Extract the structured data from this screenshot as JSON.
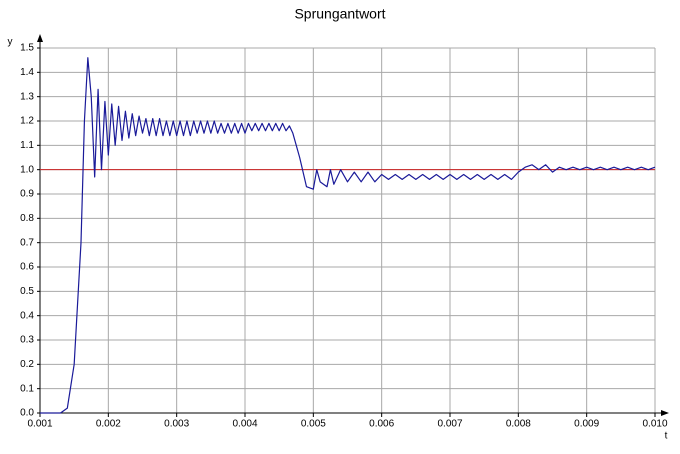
{
  "chart_data": {
    "type": "line",
    "title": "Sprungantwort",
    "x_label": "t",
    "y_label": "y",
    "xlim": [
      0.001,
      0.01
    ],
    "ylim": [
      0,
      1.5
    ],
    "xticks": [
      0.001,
      0.002,
      0.003,
      0.004,
      0.005,
      0.006,
      0.007,
      0.008,
      0.009,
      {
        "value": 0.01,
        "label": "0.010"
      }
    ],
    "yticks": [
      {
        "value": 0,
        "label": "0.0"
      },
      0.1,
      0.2,
      0.3,
      0.4,
      0.5,
      0.6,
      0.7,
      0.8,
      0.9,
      {
        "value": 1,
        "label": "1.0"
      },
      1.1,
      1.2,
      1.3,
      1.4,
      1.5
    ],
    "grid": true,
    "reference_line": {
      "value": 1,
      "color": "#cc2222"
    },
    "x": [
      0.001,
      0.0013,
      0.0014,
      0.0015,
      0.0016,
      0.00165,
      0.0017,
      0.00175,
      0.0018,
      0.00185,
      0.0019,
      0.00195,
      0.002,
      0.00205,
      0.0021,
      0.00215,
      0.0022,
      0.00225,
      0.0023,
      0.00235,
      0.0024,
      0.00245,
      0.0025,
      0.00255,
      0.0026,
      0.00265,
      0.0027,
      0.00275,
      0.0028,
      0.00285,
      0.0029,
      0.00295,
      0.003,
      0.00305,
      0.0031,
      0.00315,
      0.0032,
      0.00325,
      0.0033,
      0.00335,
      0.0034,
      0.00345,
      0.0035,
      0.00355,
      0.0036,
      0.00365,
      0.0037,
      0.00375,
      0.0038,
      0.00385,
      0.0039,
      0.00395,
      0.004,
      0.00405,
      0.0041,
      0.00415,
      0.0042,
      0.00425,
      0.0043,
      0.00435,
      0.0044,
      0.00445,
      0.0045,
      0.00455,
      0.0046,
      0.00465,
      0.0047,
      0.0048,
      0.0049,
      0.005,
      0.00505,
      0.0051,
      0.0052,
      0.00525,
      0.0053,
      0.0054,
      0.0055,
      0.0056,
      0.0057,
      0.0058,
      0.0059,
      0.006,
      0.0061,
      0.0062,
      0.0063,
      0.0064,
      0.0065,
      0.0066,
      0.0067,
      0.0068,
      0.0069,
      0.007,
      0.0071,
      0.0072,
      0.0073,
      0.0074,
      0.0075,
      0.0076,
      0.0077,
      0.0078,
      0.0079,
      0.008,
      0.0081,
      0.0082,
      0.0083,
      0.0084,
      0.0085,
      0.0086,
      0.0087,
      0.0088,
      0.0089,
      0.009,
      0.0091,
      0.0092,
      0.0093,
      0.0094,
      0.0095,
      0.0096,
      0.0097,
      0.0098,
      0.0099,
      0.01
    ],
    "series": [
      {
        "color": "#1a1a99",
        "values": [
          0,
          0,
          0.02,
          0.2,
          0.7,
          1.2,
          1.46,
          1.3,
          0.97,
          1.33,
          1.0,
          1.28,
          1.06,
          1.27,
          1.1,
          1.26,
          1.12,
          1.24,
          1.13,
          1.23,
          1.14,
          1.22,
          1.15,
          1.21,
          1.14,
          1.21,
          1.14,
          1.21,
          1.14,
          1.2,
          1.14,
          1.2,
          1.14,
          1.2,
          1.14,
          1.2,
          1.14,
          1.2,
          1.15,
          1.2,
          1.15,
          1.2,
          1.15,
          1.2,
          1.15,
          1.19,
          1.15,
          1.19,
          1.15,
          1.19,
          1.15,
          1.19,
          1.15,
          1.19,
          1.16,
          1.19,
          1.16,
          1.19,
          1.16,
          1.19,
          1.16,
          1.19,
          1.16,
          1.19,
          1.16,
          1.18,
          1.15,
          1.05,
          0.93,
          0.92,
          1.0,
          0.95,
          0.93,
          1.0,
          0.94,
          1.0,
          0.95,
          0.99,
          0.95,
          0.99,
          0.95,
          0.98,
          0.96,
          0.98,
          0.96,
          0.98,
          0.96,
          0.98,
          0.96,
          0.98,
          0.96,
          0.98,
          0.96,
          0.98,
          0.96,
          0.98,
          0.96,
          0.98,
          0.96,
          0.98,
          0.96,
          0.99,
          1.01,
          1.02,
          1.0,
          1.02,
          0.99,
          1.01,
          1.0,
          1.01,
          1.0,
          1.01,
          1.0,
          1.01,
          1.0,
          1.01,
          1.0,
          1.01,
          1.0,
          1.01,
          1.0,
          1.01
        ]
      }
    ]
  }
}
